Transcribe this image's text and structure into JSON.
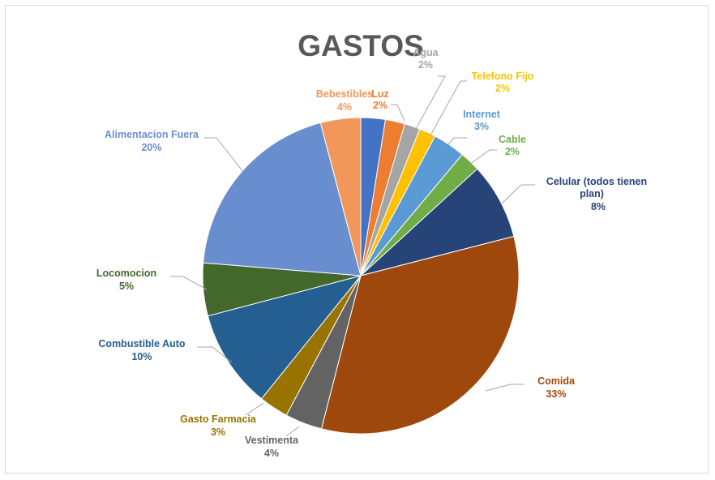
{
  "chart_data": {
    "type": "pie",
    "title": "GASTOS",
    "start_angle_deg": 0,
    "direction": "clockwise",
    "slices": [
      {
        "label": "",
        "value": 2.5,
        "pct_label": "",
        "color": "#4472c4",
        "label_color": "#4472c4"
      },
      {
        "label": "Luz",
        "value": 2.0,
        "pct_label": "2%",
        "color": "#ed7d31",
        "label_color": "#ed7d31"
      },
      {
        "label": "Agua",
        "value": 1.6,
        "pct_label": "2%",
        "color": "#a5a5a5",
        "label_color": "#a5a5a5"
      },
      {
        "label": "Telefono Fijo",
        "value": 1.7,
        "pct_label": "2%",
        "color": "#ffc000",
        "label_color": "#ffc000"
      },
      {
        "label": "Internet",
        "value": 3.3,
        "pct_label": "3%",
        "color": "#5b9bd5",
        "label_color": "#5b9bd5"
      },
      {
        "label": "Cable",
        "value": 2.1,
        "pct_label": "2%",
        "color": "#70ad47",
        "label_color": "#70ad47"
      },
      {
        "label": "Celular (todos tienen plan)",
        "value": 7.8,
        "pct_label": "8%",
        "color": "#264478",
        "label_color": "#264478"
      },
      {
        "label": "Comida",
        "value": 33.0,
        "pct_label": "33%",
        "color": "#9e480e",
        "label_color": "#9e480e"
      },
      {
        "label": "Vestimenta",
        "value": 3.8,
        "pct_label": "4%",
        "color": "#636363",
        "label_color": "#636363"
      },
      {
        "label": "Gasto Farmacia",
        "value": 3.0,
        "pct_label": "3%",
        "color": "#997300",
        "label_color": "#997300"
      },
      {
        "label": "Combustible Auto",
        "value": 10.1,
        "pct_label": "10%",
        "color": "#255e91",
        "label_color": "#255e91"
      },
      {
        "label": "Locomocion",
        "value": 5.4,
        "pct_label": "5%",
        "color": "#43682b",
        "label_color": "#43682b"
      },
      {
        "label": "Alimentacion Fuera",
        "value": 19.6,
        "pct_label": "20%",
        "color": "#698ed0",
        "label_color": "#698ed0"
      },
      {
        "label": "Bebestibles",
        "value": 4.1,
        "pct_label": "4%",
        "color": "#f1975a",
        "label_color": "#f1975a"
      }
    ]
  }
}
